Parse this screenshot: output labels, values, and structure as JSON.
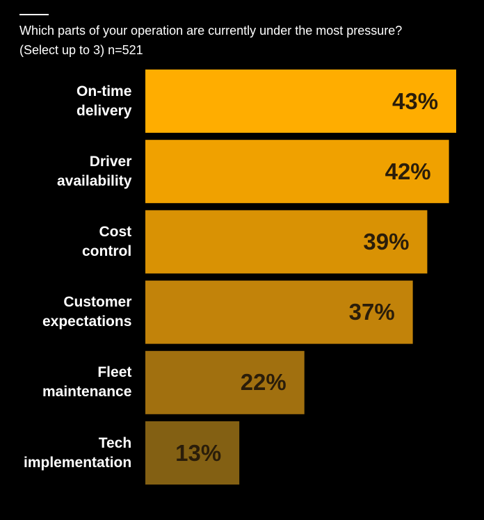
{
  "chart_data": {
    "type": "bar",
    "orientation": "horizontal",
    "title": "Which parts of your operation are currently under the most pressure?",
    "subtitle": "(Select up to 3) n=521",
    "categories": [
      "On-time delivery",
      "Driver availability",
      "Cost control",
      "Customer expectations",
      "Fleet maintenance",
      "Tech implementation"
    ],
    "values": [
      43,
      42,
      39,
      37,
      22,
      13
    ],
    "value_labels": [
      "43%",
      "42%",
      "39%",
      "37%",
      "22%",
      "13%"
    ],
    "colors": [
      "#ffad00",
      "#f0a100",
      "#d99204",
      "#c2830a",
      "#a1700f",
      "#836013"
    ]
  }
}
